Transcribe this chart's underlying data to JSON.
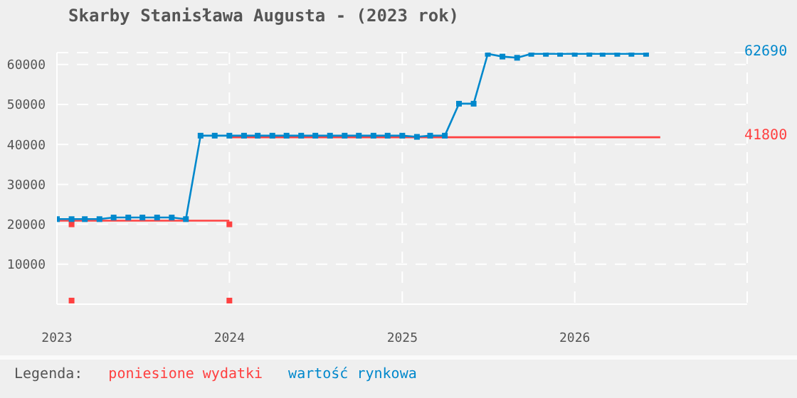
{
  "chart_data": {
    "type": "line",
    "title": "Skarby Stanisława Augusta - (2023 rok)",
    "legend_title": "Legenda:",
    "legend": "bottom",
    "grid": true,
    "xlim": [
      "2023",
      "2027"
    ],
    "xticks": [
      "2023",
      "2024",
      "2025",
      "2026"
    ],
    "ylim": [
      0,
      63000
    ],
    "yticks": [
      10000,
      20000,
      30000,
      40000,
      50000,
      60000
    ],
    "series": [
      {
        "name": "poniesione wydatki",
        "color": "#ff4040",
        "marker": "none",
        "x": [
          "2023-01",
          "2024-01"
        ],
        "values": [
          20900,
          20900
        ]
      },
      {
        "color": "#ff4040",
        "marker": "none",
        "x": [
          "2024-01",
          "2026-07"
        ],
        "values": [
          41800,
          41800
        ]
      },
      {
        "type": "scatter",
        "color": "#ff4040",
        "marker": "square",
        "x": [
          "2023-02",
          "2023-02",
          "2024-01",
          "2024-01"
        ],
        "values": [
          20000,
          900,
          20000,
          900
        ]
      },
      {
        "name": "wartość rynkowa",
        "color": "#0088cc",
        "marker": "square",
        "x": [
          "2023-01",
          "2023-02",
          "2023-03",
          "2023-04",
          "2023-05",
          "2023-06",
          "2023-07",
          "2023-08",
          "2023-09",
          "2023-10",
          "2023-11",
          "2023-12",
          "2024-01",
          "2024-02",
          "2024-03",
          "2024-04",
          "2024-05",
          "2024-06",
          "2024-07",
          "2024-08",
          "2024-09",
          "2024-10",
          "2024-11",
          "2024-12",
          "2025-01",
          "2025-02",
          "2025-03",
          "2025-04",
          "2025-05",
          "2025-06",
          "2025-07",
          "2025-08",
          "2025-09",
          "2025-10",
          "2025-11",
          "2025-12",
          "2026-01",
          "2026-02",
          "2026-03",
          "2026-04",
          "2026-05",
          "2026-06"
        ],
        "values": [
          21300,
          21300,
          21300,
          21300,
          21700,
          21700,
          21700,
          21700,
          21700,
          21300,
          42200,
          42200,
          42200,
          42200,
          42200,
          42200,
          42200,
          42200,
          42200,
          42200,
          42200,
          42200,
          42200,
          42200,
          42200,
          41900,
          42200,
          42200,
          50200,
          50200,
          62690,
          62000,
          61700,
          62690,
          62690,
          62690,
          62690,
          62690,
          62690,
          62690,
          62690,
          62690
        ]
      }
    ],
    "annotations": [
      "62690",
      "41800"
    ]
  }
}
